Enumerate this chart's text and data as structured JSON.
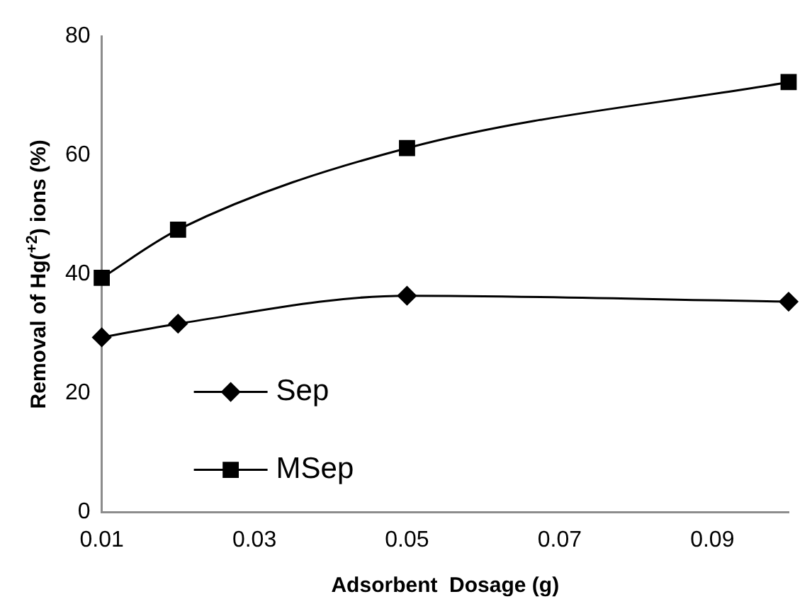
{
  "chart_data": {
    "type": "line",
    "xlabel": "Adsorbent  Dosage (g)",
    "ylabel": "Removal of Hg($^{+2}$) ions (%)",
    "x": [
      0.01,
      0.02,
      0.05,
      0.1
    ],
    "series": [
      {
        "name": "Sep",
        "color": "#000000",
        "marker": "diamond",
        "values": [
          29.4,
          31.7,
          36.4,
          35.4
        ]
      },
      {
        "name": "MSep",
        "color": "#000000",
        "marker": "square",
        "values": [
          39.4,
          47.5,
          61.2,
          72.3
        ]
      }
    ],
    "xlim": [
      0.01,
      0.1
    ],
    "xticks": [
      0.01,
      0.03,
      0.05,
      0.07,
      0.09
    ],
    "ylim": [
      0,
      80
    ],
    "yticks": [
      0,
      20,
      40,
      60,
      80
    ],
    "grid": false,
    "legend": "bottom left"
  }
}
